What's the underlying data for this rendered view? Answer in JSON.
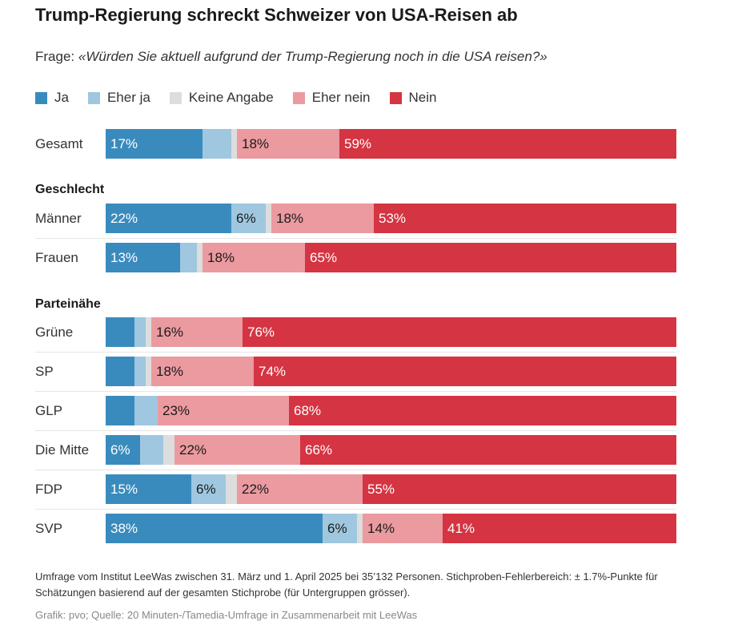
{
  "header": {
    "title": "Trump-Regierung schreckt Schweizer von USA-Reisen ab",
    "question_prefix": "Frage: ",
    "question": "«Würden Sie aktuell aufgrund der Trump-Regierung noch in die USA reisen?»"
  },
  "colors": {
    "ja": "#3a8bbd",
    "eher_ja": "#9fc7df",
    "keine_angabe": "#dddddd",
    "eher_nein": "#eb9aa0",
    "nein": "#d53442"
  },
  "chart_data": {
    "type": "bar",
    "orientation": "horizontal",
    "stacked": true,
    "title": "Trump-Regierung schreckt Schweizer von USA-Reisen ab",
    "series": [
      {
        "key": "ja",
        "name": "Ja",
        "color": "#3a8bbd"
      },
      {
        "key": "eher_ja",
        "name": "Eher ja",
        "color": "#9fc7df"
      },
      {
        "key": "keine_angabe",
        "name": "Keine Angabe",
        "color": "#dddddd"
      },
      {
        "key": "eher_nein",
        "name": "Eher nein",
        "color": "#eb9aa0"
      },
      {
        "key": "nein",
        "name": "Nein",
        "color": "#d53442"
      }
    ],
    "groups": [
      {
        "title": "",
        "rows": [
          {
            "label": "Gesamt",
            "values": [
              17,
              5,
              1,
              18,
              59
            ],
            "labels": [
              "17%",
              "",
              "",
              "18%",
              "59%"
            ]
          }
        ]
      },
      {
        "title": "Geschlecht",
        "rows": [
          {
            "label": "Männer",
            "values": [
              22,
              6,
              1,
              18,
              53
            ],
            "labels": [
              "22%",
              "6%",
              "",
              "18%",
              "53%"
            ]
          },
          {
            "label": "Frauen",
            "values": [
              13,
              3,
              1,
              18,
              65
            ],
            "labels": [
              "13%",
              "",
              "",
              "18%",
              "65%"
            ]
          }
        ]
      },
      {
        "title": "Parteinähe",
        "rows": [
          {
            "label": "Grüne",
            "values": [
              5,
              2,
              1,
              16,
              76
            ],
            "labels": [
              "",
              "",
              "",
              "16%",
              "76%"
            ]
          },
          {
            "label": "SP",
            "values": [
              5,
              2,
              1,
              18,
              74
            ],
            "labels": [
              "",
              "",
              "",
              "18%",
              "74%"
            ]
          },
          {
            "label": "GLP",
            "values": [
              5,
              4,
              0,
              23,
              68
            ],
            "labels": [
              "",
              "",
              "",
              "23%",
              "68%"
            ]
          },
          {
            "label": "Die Mitte",
            "values": [
              6,
              4,
              2,
              22,
              66
            ],
            "labels": [
              "6%",
              "",
              "",
              "22%",
              "66%"
            ]
          },
          {
            "label": "FDP",
            "values": [
              15,
              6,
              2,
              22,
              55
            ],
            "labels": [
              "15%",
              "6%",
              "",
              "22%",
              "55%"
            ]
          },
          {
            "label": "SVP",
            "values": [
              38,
              6,
              1,
              14,
              41
            ],
            "labels": [
              "38%",
              "6%",
              "",
              "14%",
              "41%"
            ]
          }
        ]
      }
    ]
  },
  "footnote": "Umfrage vom Institut LeeWas zwischen 31. März und 1. April 2025 bei 35’132 Personen. Stichproben-Fehlerbereich: ± 1.7%-Punkte für Schätzungen basierend auf der gesamten Stichprobe (für Untergruppen grösser).",
  "source": "Grafik: pvo; Quelle: 20 Minuten-/Tamedia-Umfrage in Zusammenarbeit mit LeeWas"
}
